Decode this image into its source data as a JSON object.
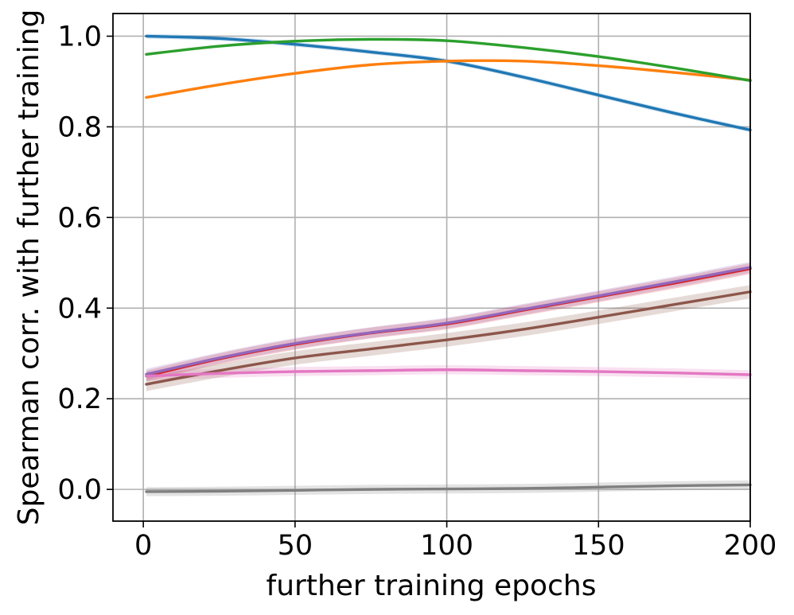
{
  "chart_data": {
    "type": "line",
    "xlabel": "further training epochs",
    "ylabel": "Spearman corr. with further training",
    "xlim": [
      -10,
      200
    ],
    "ylim": [
      -0.07,
      1.05
    ],
    "xticks": [
      0,
      50,
      100,
      150,
      200
    ],
    "xtick_labels": [
      "0",
      "50",
      "100",
      "150",
      "200"
    ],
    "yticks": [
      0.0,
      0.2,
      0.4,
      0.6,
      0.8,
      1.0
    ],
    "ytick_labels": [
      "0.0",
      "0.2",
      "0.4",
      "0.6",
      "0.8",
      "1.0"
    ],
    "grid": true,
    "legend": false,
    "x": [
      1,
      25,
      50,
      75,
      100,
      125,
      150,
      175,
      200
    ],
    "series": [
      {
        "color": "#1f77b4",
        "values": [
          1.0,
          0.995,
          0.982,
          0.965,
          0.945,
          0.91,
          0.87,
          0.83,
          0.793
        ],
        "band": 0.005
      },
      {
        "color": "#ff7f0e",
        "values": [
          0.865,
          0.893,
          0.918,
          0.937,
          0.945,
          0.945,
          0.935,
          0.92,
          0.903
        ],
        "band": 0.003
      },
      {
        "color": "#2ca02c",
        "values": [
          0.96,
          0.978,
          0.989,
          0.993,
          0.99,
          0.975,
          0.955,
          0.93,
          0.902
        ],
        "band": 0.003
      },
      {
        "color": "#d62728",
        "values": [
          0.25,
          0.288,
          0.32,
          0.345,
          0.365,
          0.395,
          0.425,
          0.455,
          0.487
        ],
        "band": 0.012
      },
      {
        "color": "#9467bd",
        "values": [
          0.254,
          0.29,
          0.322,
          0.346,
          0.367,
          0.397,
          0.427,
          0.458,
          0.49
        ],
        "band": 0.012
      },
      {
        "color": "#8c564b",
        "values": [
          0.232,
          0.262,
          0.29,
          0.31,
          0.33,
          0.353,
          0.38,
          0.408,
          0.436
        ],
        "band": 0.015
      },
      {
        "color": "#e377c2",
        "values": [
          0.25,
          0.256,
          0.26,
          0.262,
          0.264,
          0.262,
          0.26,
          0.257,
          0.253
        ],
        "band": 0.01
      },
      {
        "color": "#7f7f7f",
        "values": [
          -0.005,
          -0.004,
          -0.002,
          0.0,
          0.001,
          0.002,
          0.005,
          0.008,
          0.01
        ],
        "band": 0.01
      }
    ]
  }
}
